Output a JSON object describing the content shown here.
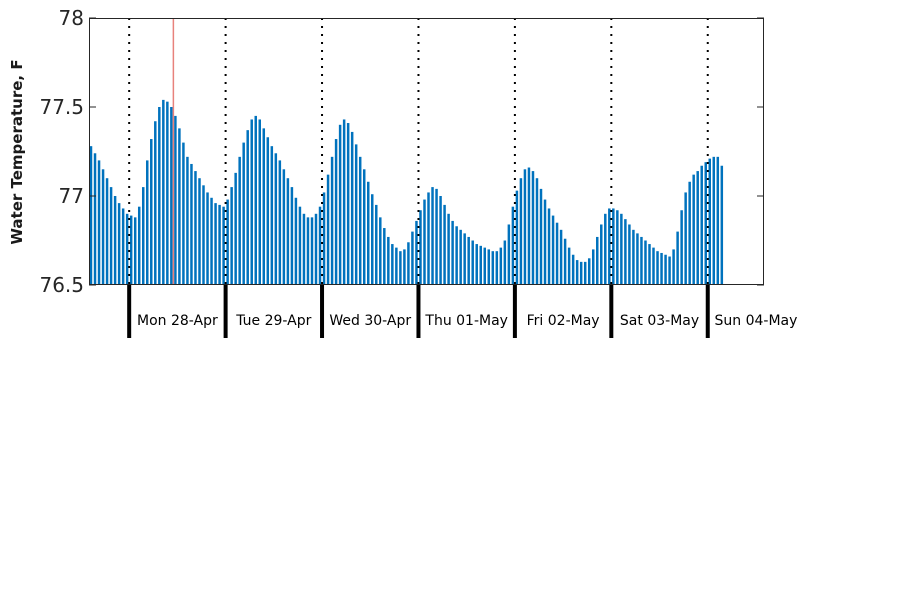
{
  "chart_data": {
    "type": "bar",
    "title": "",
    "xlabel": "",
    "ylabel": "Water Temperature, F",
    "ylim": [
      76.5,
      78
    ],
    "yticks": [
      "76.5",
      "77",
      "77.5",
      "78"
    ],
    "grid": false,
    "bar_color": "#0072BD",
    "marker_color": "#E8827C",
    "day_labels": [
      "Mon 28-Apr",
      "Tue 29-Apr",
      "Wed 30-Apr",
      "Thu 01-May",
      "Fri 02-May",
      "Sat 03-May",
      "Sun 04-May"
    ],
    "x_start_hour": -10,
    "x_end_hour": 158,
    "marker_hour": 11,
    "hourly_values": [
      77.28,
      77.24,
      77.2,
      77.15,
      77.1,
      77.05,
      77.0,
      76.96,
      76.93,
      76.9,
      76.89,
      76.88,
      76.94,
      77.05,
      77.2,
      77.32,
      77.42,
      77.5,
      77.54,
      77.53,
      77.5,
      77.45,
      77.38,
      77.3,
      77.22,
      77.18,
      77.14,
      77.1,
      77.06,
      77.02,
      76.99,
      76.96,
      76.95,
      76.94,
      76.98,
      77.05,
      77.13,
      77.22,
      77.3,
      77.37,
      77.43,
      77.45,
      77.43,
      77.38,
      77.33,
      77.28,
      77.24,
      77.2,
      77.15,
      77.1,
      77.05,
      76.99,
      76.94,
      76.9,
      76.88,
      76.88,
      76.9,
      76.94,
      77.02,
      77.12,
      77.22,
      77.32,
      77.4,
      77.43,
      77.41,
      77.36,
      77.29,
      77.22,
      77.15,
      77.08,
      77.01,
      76.95,
      76.88,
      76.82,
      76.77,
      76.73,
      76.71,
      76.69,
      76.7,
      76.74,
      76.8,
      76.86,
      76.92,
      76.98,
      77.02,
      77.05,
      77.04,
      77.0,
      76.95,
      76.9,
      76.86,
      76.83,
      76.81,
      76.79,
      76.77,
      76.75,
      76.73,
      76.72,
      76.71,
      76.7,
      76.69,
      76.69,
      76.71,
      76.75,
      76.84,
      76.94,
      77.03,
      77.1,
      77.15,
      77.16,
      77.14,
      77.1,
      77.04,
      76.98,
      76.93,
      76.89,
      76.85,
      76.81,
      76.76,
      76.71,
      76.67,
      76.64,
      76.63,
      76.63,
      76.65,
      76.7,
      76.77,
      76.84,
      76.9,
      76.93,
      76.93,
      76.92,
      76.9,
      76.87,
      76.84,
      76.81,
      76.79,
      76.77,
      76.75,
      76.73,
      76.71,
      76.69,
      76.68,
      76.67,
      76.66,
      76.7,
      76.8,
      76.92,
      77.02,
      77.08,
      77.12,
      77.14,
      77.17,
      77.19,
      77.21,
      77.22,
      77.22,
      77.17
    ]
  }
}
